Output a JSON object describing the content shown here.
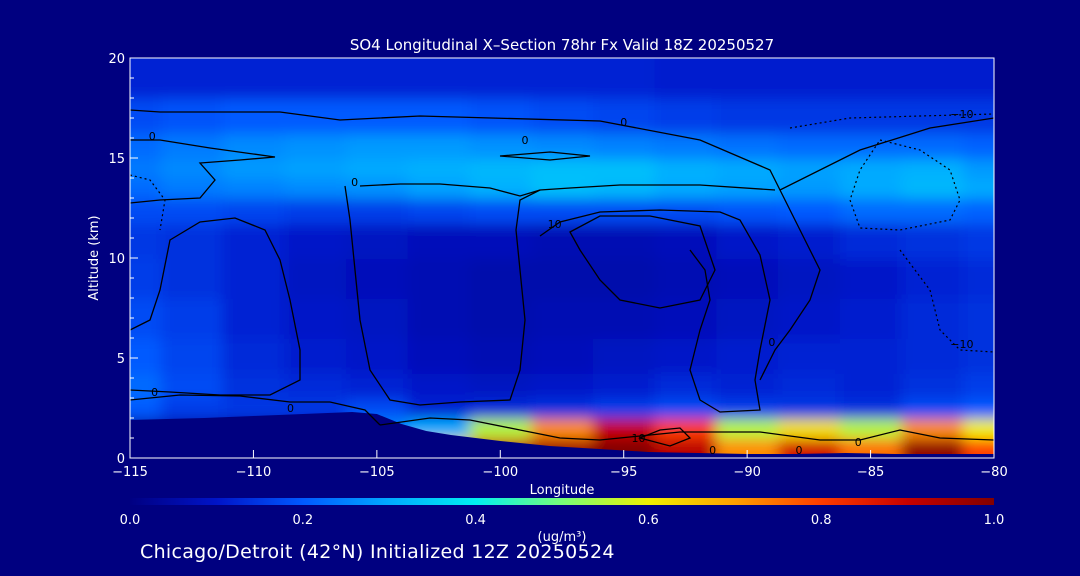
{
  "chart_data": {
    "type": "heatmap",
    "title": "SO4 Longitudinal X–Section 78hr  Fx Valid 18Z 20250527",
    "xlabel": "Longitude",
    "ylabel": "Altitude (km)",
    "xlim": [
      -115,
      -80
    ],
    "ylim": [
      0,
      20
    ],
    "xticks": [
      -115,
      -110,
      -105,
      -100,
      -95,
      -90,
      -85,
      -80
    ],
    "xtick_labels": [
      "−115",
      "−110",
      "−105",
      "−100",
      "−95",
      "−90",
      "−85",
      "−80"
    ],
    "yticks": [
      0,
      5,
      10,
      15,
      20
    ],
    "ytick_labels": [
      "0",
      "5",
      "10",
      "15",
      "20"
    ],
    "x": [
      -115,
      -112.5,
      -110,
      -107.5,
      -105,
      -102.5,
      -100,
      -97.5,
      -95,
      -92.5,
      -90,
      -87.5,
      -85,
      -82.5,
      -80
    ],
    "y": [
      0.5,
      1.5,
      2.5,
      3.5,
      5,
      7,
      9,
      11,
      12.5,
      13.5,
      14.5,
      15.5,
      17,
      19
    ],
    "z": [
      [
        0.05,
        0.05,
        0.05,
        0.05,
        0.35,
        0.62,
        0.9,
        0.96,
        1.0,
        0.92,
        0.72,
        0.88,
        0.75,
        0.98,
        0.8
      ],
      [
        0.05,
        0.05,
        0.05,
        0.08,
        0.25,
        0.3,
        0.55,
        0.72,
        0.9,
        0.8,
        0.55,
        0.62,
        0.55,
        0.72,
        0.6
      ],
      [
        0.2,
        0.16,
        0.15,
        0.15,
        0.18,
        0.12,
        0.13,
        0.14,
        0.16,
        0.18,
        0.16,
        0.15,
        0.14,
        0.18,
        0.2
      ],
      [
        0.22,
        0.18,
        0.14,
        0.13,
        0.12,
        0.1,
        0.09,
        0.1,
        0.11,
        0.13,
        0.12,
        0.13,
        0.12,
        0.14,
        0.16
      ],
      [
        0.2,
        0.17,
        0.13,
        0.11,
        0.1,
        0.08,
        0.07,
        0.08,
        0.09,
        0.1,
        0.11,
        0.12,
        0.12,
        0.13,
        0.14
      ],
      [
        0.18,
        0.16,
        0.12,
        0.1,
        0.09,
        0.07,
        0.06,
        0.07,
        0.07,
        0.08,
        0.09,
        0.1,
        0.11,
        0.13,
        0.14
      ],
      [
        0.16,
        0.14,
        0.12,
        0.09,
        0.08,
        0.07,
        0.06,
        0.06,
        0.06,
        0.07,
        0.08,
        0.09,
        0.1,
        0.12,
        0.13
      ],
      [
        0.15,
        0.14,
        0.12,
        0.1,
        0.09,
        0.08,
        0.08,
        0.07,
        0.07,
        0.08,
        0.1,
        0.11,
        0.13,
        0.14,
        0.15
      ],
      [
        0.18,
        0.18,
        0.17,
        0.16,
        0.16,
        0.17,
        0.18,
        0.18,
        0.18,
        0.18,
        0.19,
        0.2,
        0.22,
        0.22,
        0.21
      ],
      [
        0.22,
        0.24,
        0.25,
        0.26,
        0.27,
        0.29,
        0.31,
        0.33,
        0.32,
        0.3,
        0.29,
        0.28,
        0.3,
        0.32,
        0.3
      ],
      [
        0.24,
        0.26,
        0.28,
        0.29,
        0.3,
        0.31,
        0.32,
        0.33,
        0.33,
        0.31,
        0.3,
        0.29,
        0.3,
        0.31,
        0.28
      ],
      [
        0.22,
        0.24,
        0.26,
        0.27,
        0.28,
        0.28,
        0.27,
        0.26,
        0.25,
        0.24,
        0.23,
        0.22,
        0.22,
        0.22,
        0.21
      ],
      [
        0.18,
        0.19,
        0.2,
        0.2,
        0.2,
        0.2,
        0.19,
        0.18,
        0.17,
        0.16,
        0.15,
        0.15,
        0.15,
        0.15,
        0.15
      ],
      [
        0.12,
        0.12,
        0.12,
        0.12,
        0.12,
        0.12,
        0.12,
        0.12,
        0.12,
        0.11,
        0.11,
        0.11,
        0.11,
        0.11,
        0.11
      ]
    ],
    "terrain_km": [
      [
        -115,
        1.9
      ],
      [
        -112,
        2.0
      ],
      [
        -110,
        2.1
      ],
      [
        -108,
        2.2
      ],
      [
        -106,
        2.3
      ],
      [
        -105,
        2.2
      ],
      [
        -104,
        1.7
      ],
      [
        -103,
        1.35
      ],
      [
        -102,
        1.15
      ],
      [
        -100,
        0.85
      ],
      [
        -98,
        0.6
      ],
      [
        -96,
        0.45
      ],
      [
        -94,
        0.3
      ],
      [
        -92,
        0.25
      ],
      [
        -90,
        0.2
      ],
      [
        -88,
        0.2
      ],
      [
        -86,
        0.25
      ],
      [
        -84,
        0.2
      ],
      [
        -82,
        0.2
      ],
      [
        -80,
        0.2
      ]
    ],
    "contour_labels": [
      {
        "text": "0",
        "x": -114.1,
        "y": 15.9
      },
      {
        "text": "0",
        "x": -105.9,
        "y": 13.6
      },
      {
        "text": "0",
        "x": -99.0,
        "y": 15.7
      },
      {
        "text": "0",
        "x": -95.0,
        "y": 16.6
      },
      {
        "text": "10",
        "x": -97.8,
        "y": 11.5
      },
      {
        "text": "0",
        "x": -89.0,
        "y": 5.6
      },
      {
        "text": "0",
        "x": -114.0,
        "y": 3.1
      },
      {
        "text": "0",
        "x": -108.5,
        "y": 2.3
      },
      {
        "text": "10",
        "x": -94.4,
        "y": 0.8
      },
      {
        "text": "0",
        "x": -91.4,
        "y": 0.2
      },
      {
        "text": "0",
        "x": -87.9,
        "y": 0.2
      },
      {
        "text": "0",
        "x": -85.5,
        "y": 0.6
      },
      {
        "text": "−10",
        "x": -81.3,
        "y": 17.0
      },
      {
        "text": "−10",
        "x": -81.3,
        "y": 5.5
      }
    ],
    "colorbar": {
      "ticks": [
        0.0,
        0.2,
        0.4,
        0.6,
        0.8,
        1.0
      ],
      "tick_labels": [
        "0.0",
        "0.2",
        "0.4",
        "0.6",
        "0.8",
        "1.0"
      ],
      "units": "(ug/m³)",
      "range": [
        0,
        1
      ]
    }
  },
  "footer": "Chicago/Detroit (42°N) Initialized 12Z 20250524",
  "colors": {
    "background": "#000080",
    "text": "#ffffff",
    "contour": "#000000"
  }
}
